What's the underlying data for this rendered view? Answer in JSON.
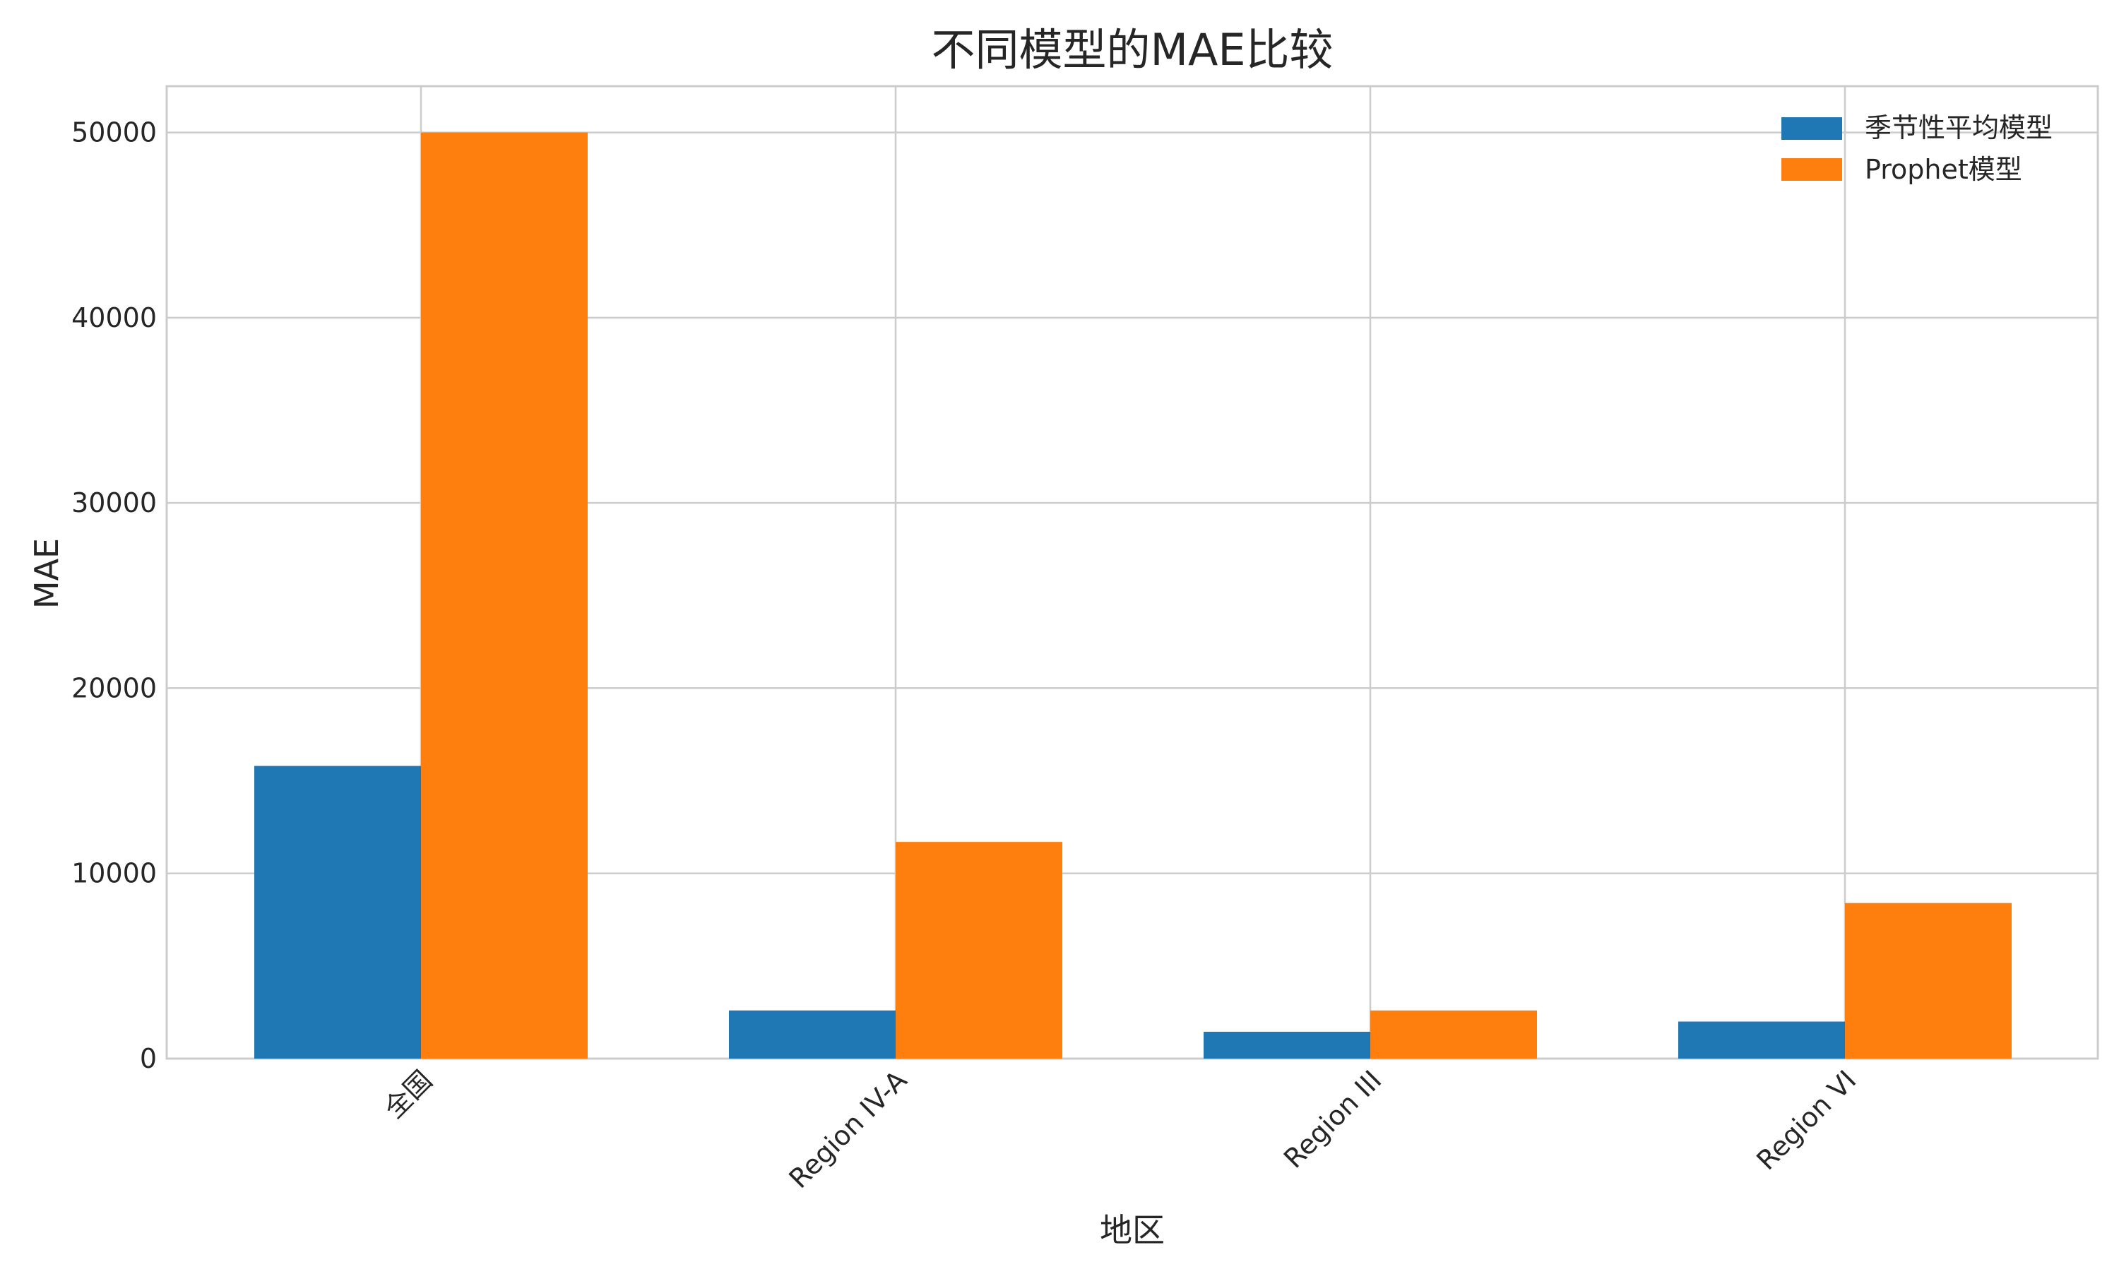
{
  "chart_data": {
    "type": "bar",
    "title": "不同模型的MAE比较",
    "xlabel": "地区",
    "ylabel": "MAE",
    "categories": [
      "全国",
      "Region IV-A",
      "Region III",
      "Region VI"
    ],
    "series": [
      {
        "name": "季节性平均模型",
        "color": "#1f77b4",
        "values": [
          15800,
          2600,
          1450,
          2000
        ]
      },
      {
        "name": "Prophet模型",
        "color": "#ff7f0e",
        "values": [
          50000,
          11700,
          2600,
          8400
        ]
      }
    ],
    "ylim": [
      0,
      52500
    ],
    "yticks": [
      0,
      10000,
      20000,
      30000,
      40000,
      50000
    ],
    "ytick_labels": [
      "0",
      "10000",
      "20000",
      "30000",
      "40000",
      "50000"
    ],
    "grid": true,
    "legend_position": "top-right"
  }
}
